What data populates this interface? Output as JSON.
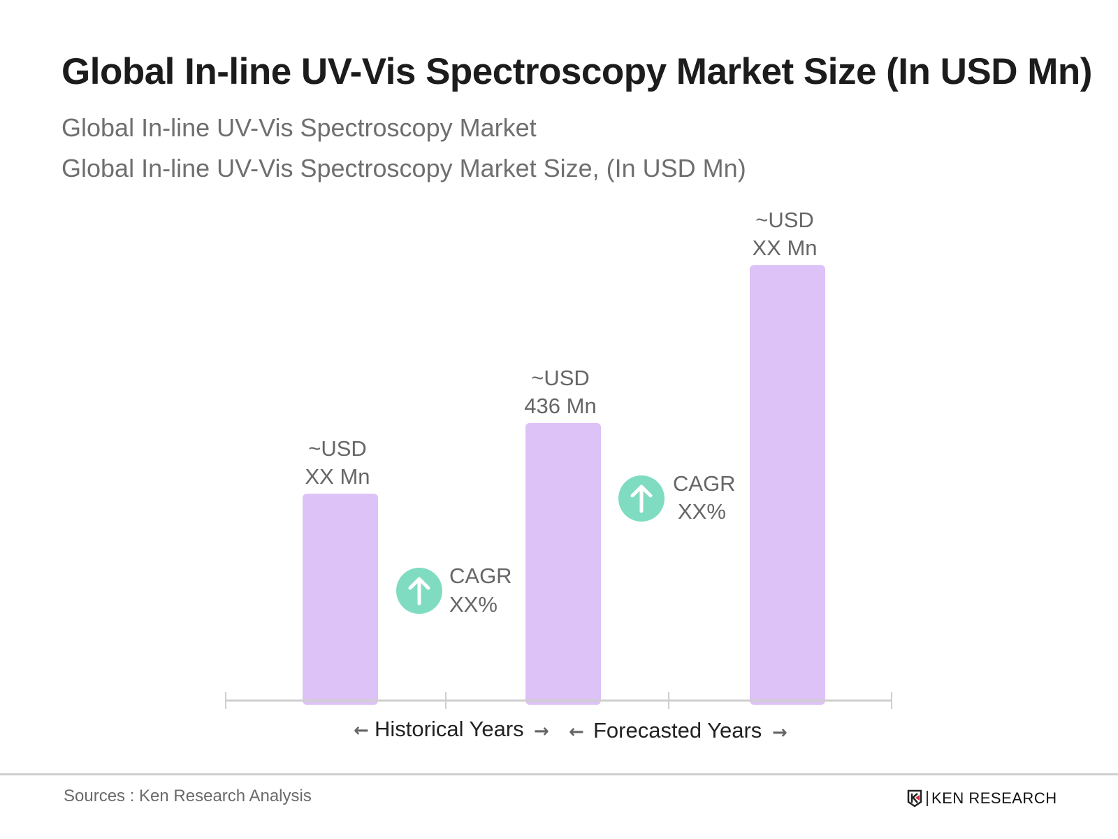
{
  "header": {
    "title": "Global In-line UV-Vis Spectroscopy Market Size (In USD Mn)",
    "subtitle1": "Global In-line UV-Vis Spectroscopy Market",
    "subtitle2": "Global In-line UV-Vis Spectroscopy Market Size, (In USD Mn)"
  },
  "chart_data": {
    "type": "bar",
    "title": "Global In-line UV-Vis Spectroscopy Market Size (In USD Mn)",
    "categories": [
      "",
      "",
      ""
    ],
    "values": [
      325,
      436,
      684
    ],
    "data_labels": [
      {
        "line1": "~USD",
        "line2": "XX Mn"
      },
      {
        "line1": "~USD",
        "line2": "436 Mn"
      },
      {
        "line1": "~USD",
        "line2": "XX Mn"
      }
    ],
    "ylim": [
      0,
      700
    ],
    "grid": false,
    "bar_color": "#dcc2f6",
    "annotations": [
      {
        "line1": "CAGR",
        "line2": "XX%",
        "icon": "arrow-up-circle-icon",
        "color": "#7fdcc0"
      },
      {
        "line1": "CAGR",
        "line2": "XX%",
        "icon": "arrow-up-circle-icon",
        "color": "#7fdcc0"
      }
    ],
    "periods": [
      "Historical Years",
      "Forecasted Years"
    ]
  },
  "footer": {
    "source": "Sources : Ken Research Analysis",
    "logo_text": "KEN RESEARCH"
  }
}
